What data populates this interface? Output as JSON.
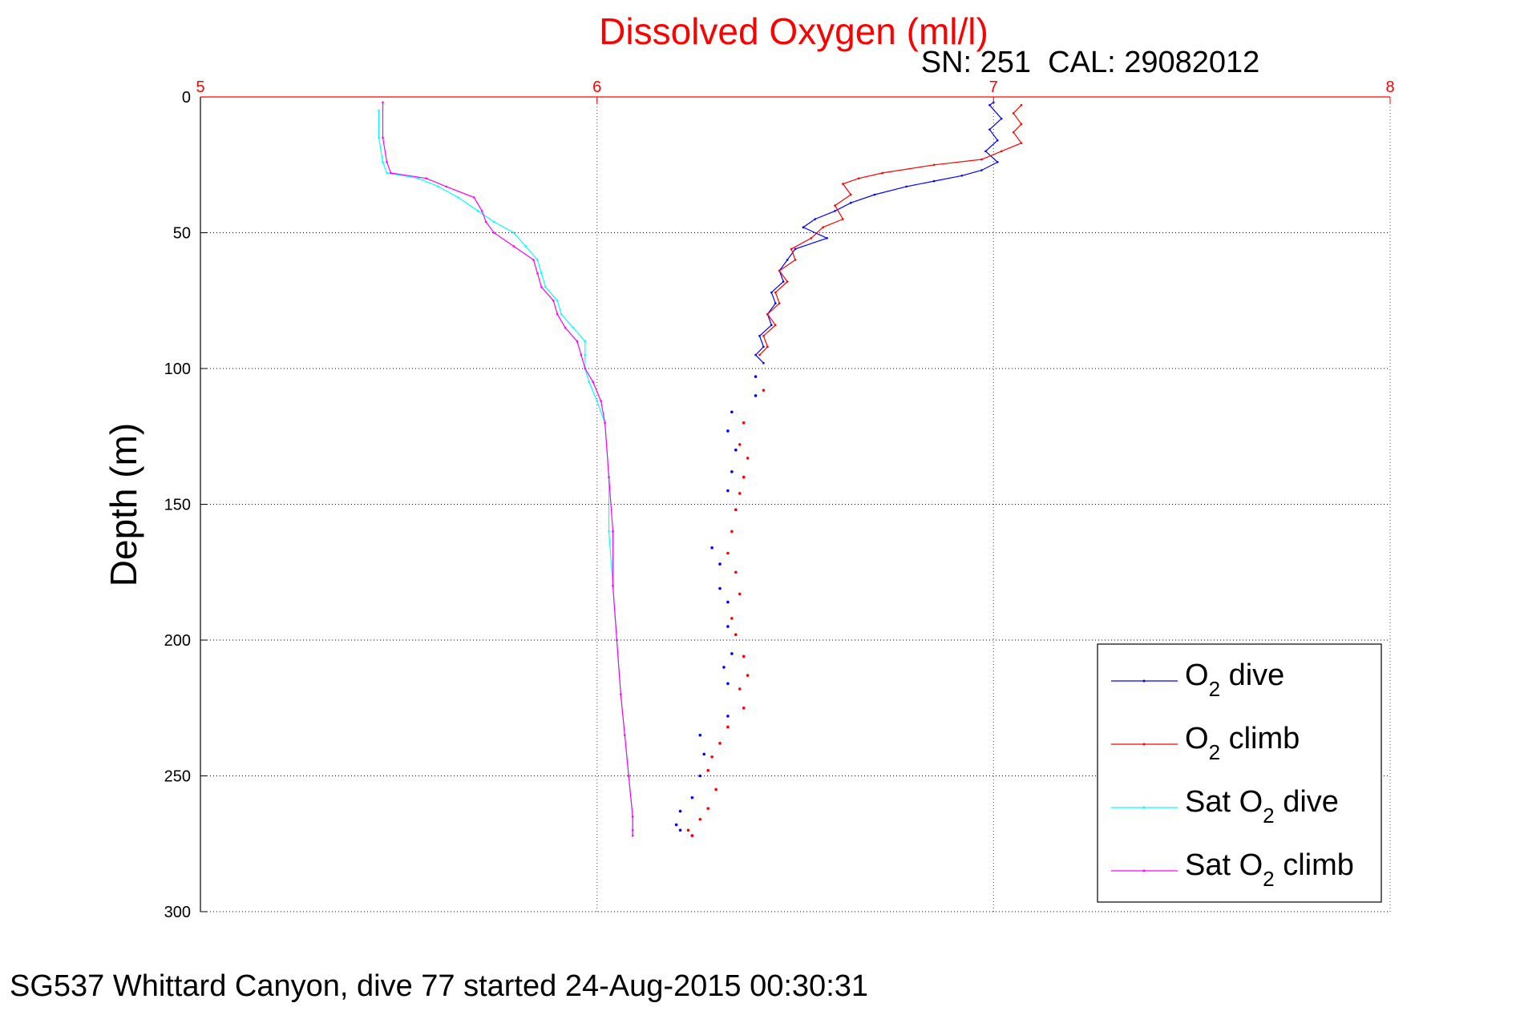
{
  "chart_data": {
    "type": "line",
    "title": "Dissolved Oxygen (ml/l)",
    "instrument_label": "SN: 251  CAL: 29082012",
    "ylabel": "Depth (m)",
    "xlim": [
      5,
      8
    ],
    "ylim": [
      0,
      300
    ],
    "y_reversed": true,
    "x_ticks": [
      "5",
      "6",
      "7",
      "8"
    ],
    "y_ticks": [
      "0",
      "50",
      "100",
      "150",
      "200",
      "250",
      "300"
    ],
    "x_tick_color": "#ff0000",
    "grid": true,
    "legend_position": "lower-right",
    "series": [
      {
        "name": "O2 dive",
        "legend_main": "O",
        "legend_sub": "2",
        "legend_suffix": " dive",
        "legend_prefix": "",
        "color": "#0000ff",
        "style": "line",
        "points": [
          [
            7.0,
            2
          ],
          [
            6.99,
            3
          ],
          [
            7.02,
            8
          ],
          [
            6.99,
            12
          ],
          [
            7.01,
            16
          ],
          [
            6.98,
            20
          ],
          [
            7.01,
            24
          ],
          [
            6.97,
            27
          ],
          [
            6.92,
            29
          ],
          [
            6.85,
            31
          ],
          [
            6.78,
            33
          ],
          [
            6.7,
            36
          ],
          [
            6.64,
            39
          ],
          [
            6.6,
            42
          ],
          [
            6.55,
            45
          ],
          [
            6.52,
            48
          ],
          [
            6.58,
            52
          ],
          [
            6.5,
            56
          ],
          [
            6.48,
            60
          ],
          [
            6.46,
            64
          ],
          [
            6.47,
            68
          ],
          [
            6.44,
            72
          ],
          [
            6.45,
            76
          ],
          [
            6.43,
            80
          ],
          [
            6.44,
            84
          ],
          [
            6.41,
            88
          ],
          [
            6.42,
            92
          ],
          [
            6.4,
            95
          ],
          [
            6.42,
            98
          ]
        ]
      },
      {
        "name": "O2 dive (deep)",
        "legend_main": "",
        "legend_sub": "",
        "legend_suffix": "",
        "legend_prefix": "",
        "color": "#0000ff",
        "style": "dots",
        "in_legend": false,
        "points": [
          [
            6.4,
            103
          ],
          [
            6.4,
            110
          ],
          [
            6.34,
            116
          ],
          [
            6.33,
            123
          ],
          [
            6.35,
            130
          ],
          [
            6.34,
            138
          ],
          [
            6.33,
            145
          ],
          [
            6.35,
            152
          ],
          [
            6.29,
            166
          ],
          [
            6.31,
            172
          ],
          [
            6.31,
            181
          ],
          [
            6.33,
            186
          ],
          [
            6.33,
            195
          ],
          [
            6.34,
            205
          ],
          [
            6.32,
            210
          ],
          [
            6.33,
            216
          ],
          [
            6.33,
            228
          ],
          [
            6.26,
            235
          ],
          [
            6.27,
            242
          ],
          [
            6.26,
            250
          ],
          [
            6.24,
            258
          ],
          [
            6.21,
            263
          ],
          [
            6.2,
            268
          ],
          [
            6.21,
            270
          ],
          [
            6.24,
            272
          ]
        ]
      },
      {
        "name": "O2 climb",
        "legend_main": "O",
        "legend_sub": "2",
        "legend_suffix": " climb",
        "legend_prefix": "",
        "color": "#ff0000",
        "style": "line",
        "points": [
          [
            7.07,
            3
          ],
          [
            7.05,
            6
          ],
          [
            7.07,
            10
          ],
          [
            7.05,
            13
          ],
          [
            7.07,
            17
          ],
          [
            7.02,
            20
          ],
          [
            6.97,
            23
          ],
          [
            6.85,
            25
          ],
          [
            6.72,
            28
          ],
          [
            6.66,
            30
          ],
          [
            6.62,
            32
          ],
          [
            6.64,
            36
          ],
          [
            6.6,
            40
          ],
          [
            6.62,
            45
          ],
          [
            6.57,
            48
          ],
          [
            6.54,
            52
          ],
          [
            6.49,
            56
          ],
          [
            6.5,
            60
          ],
          [
            6.46,
            64
          ],
          [
            6.48,
            68
          ],
          [
            6.45,
            72
          ],
          [
            6.46,
            76
          ],
          [
            6.43,
            80
          ],
          [
            6.45,
            84
          ],
          [
            6.42,
            88
          ],
          [
            6.43,
            92
          ],
          [
            6.41,
            95
          ]
        ]
      },
      {
        "name": "O2 climb (deep)",
        "legend_main": "",
        "legend_sub": "",
        "legend_suffix": "",
        "legend_prefix": "",
        "color": "#ff0000",
        "style": "dots",
        "in_legend": false,
        "points": [
          [
            6.42,
            108
          ],
          [
            6.37,
            120
          ],
          [
            6.36,
            128
          ],
          [
            6.38,
            133
          ],
          [
            6.37,
            140
          ],
          [
            6.36,
            146
          ],
          [
            6.35,
            152
          ],
          [
            6.34,
            160
          ],
          [
            6.33,
            168
          ],
          [
            6.35,
            175
          ],
          [
            6.36,
            183
          ],
          [
            6.34,
            192
          ],
          [
            6.35,
            198
          ],
          [
            6.37,
            206
          ],
          [
            6.38,
            213
          ],
          [
            6.36,
            218
          ],
          [
            6.37,
            225
          ],
          [
            6.33,
            232
          ],
          [
            6.31,
            238
          ],
          [
            6.29,
            243
          ],
          [
            6.28,
            248
          ],
          [
            6.3,
            255
          ],
          [
            6.28,
            262
          ],
          [
            6.26,
            266
          ],
          [
            6.23,
            270
          ],
          [
            6.24,
            272
          ]
        ]
      },
      {
        "name": "Sat O2 dive",
        "legend_main": "O",
        "legend_sub": "2",
        "legend_suffix": " dive",
        "legend_prefix": "Sat ",
        "color": "#00ffff",
        "style": "line",
        "points": [
          [
            5.45,
            5
          ],
          [
            5.45,
            15
          ],
          [
            5.46,
            24
          ],
          [
            5.47,
            28
          ],
          [
            5.55,
            30
          ],
          [
            5.6,
            33
          ],
          [
            5.65,
            37
          ],
          [
            5.7,
            42
          ],
          [
            5.74,
            46
          ],
          [
            5.79,
            50
          ],
          [
            5.82,
            55
          ],
          [
            5.85,
            60
          ],
          [
            5.86,
            65
          ],
          [
            5.87,
            70
          ],
          [
            5.9,
            75
          ],
          [
            5.91,
            80
          ],
          [
            5.94,
            85
          ],
          [
            5.97,
            90
          ],
          [
            5.97,
            95
          ],
          [
            5.97,
            100
          ],
          [
            5.98,
            105
          ],
          [
            6.0,
            112
          ],
          [
            6.02,
            120
          ],
          [
            6.03,
            140
          ],
          [
            6.03,
            160
          ],
          [
            6.04,
            180
          ],
          [
            6.05,
            200
          ],
          [
            6.06,
            220
          ],
          [
            6.07,
            235
          ],
          [
            6.08,
            250
          ],
          [
            6.09,
            265
          ],
          [
            6.09,
            270
          ],
          [
            6.09,
            272
          ]
        ]
      },
      {
        "name": "Sat O2 climb",
        "legend_main": "O",
        "legend_sub": "2",
        "legend_suffix": " climb",
        "legend_prefix": "Sat ",
        "color": "#ff00ff",
        "style": "line",
        "points": [
          [
            5.46,
            2
          ],
          [
            5.46,
            15
          ],
          [
            5.47,
            24
          ],
          [
            5.48,
            28
          ],
          [
            5.57,
            30
          ],
          [
            5.62,
            33
          ],
          [
            5.69,
            37
          ],
          [
            5.71,
            42
          ],
          [
            5.72,
            46
          ],
          [
            5.74,
            50
          ],
          [
            5.79,
            55
          ],
          [
            5.84,
            60
          ],
          [
            5.85,
            65
          ],
          [
            5.86,
            70
          ],
          [
            5.89,
            75
          ],
          [
            5.9,
            80
          ],
          [
            5.92,
            85
          ],
          [
            5.95,
            90
          ],
          [
            5.96,
            95
          ],
          [
            5.97,
            100
          ],
          [
            5.99,
            105
          ],
          [
            6.01,
            112
          ],
          [
            6.02,
            120
          ],
          [
            6.03,
            140
          ],
          [
            6.04,
            160
          ],
          [
            6.04,
            180
          ],
          [
            6.05,
            200
          ],
          [
            6.06,
            220
          ],
          [
            6.07,
            235
          ],
          [
            6.08,
            250
          ],
          [
            6.09,
            265
          ],
          [
            6.09,
            270
          ],
          [
            6.09,
            272
          ]
        ]
      }
    ]
  },
  "caption": "SG537 Whittard Canyon, dive 77 started 24-Aug-2015 00:30:31"
}
